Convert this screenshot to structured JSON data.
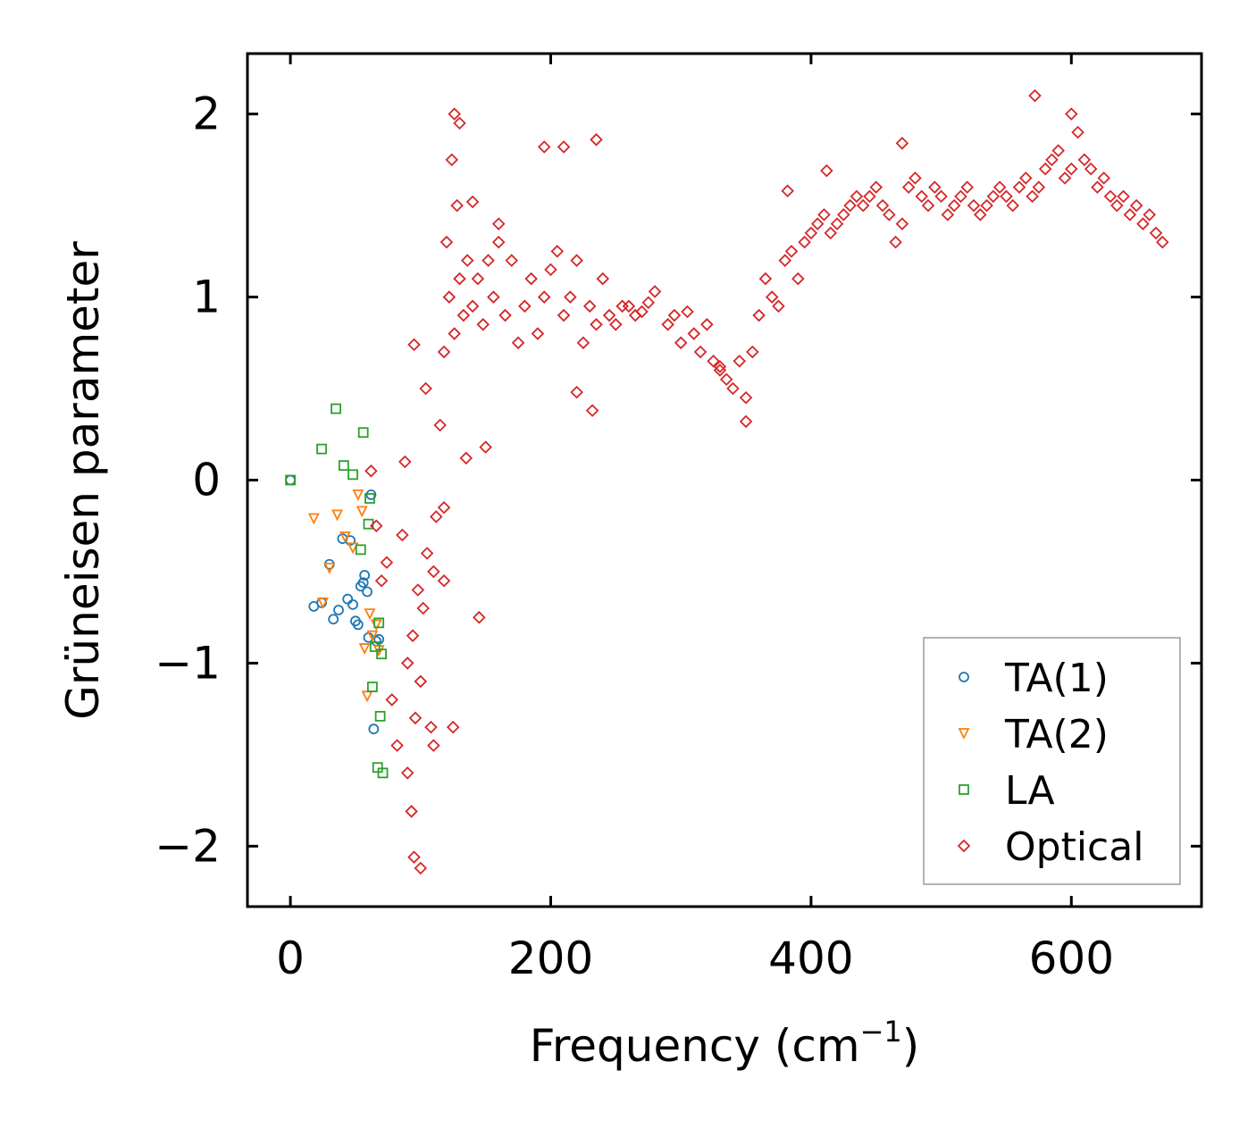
{
  "chart_data": {
    "type": "scatter",
    "title": "",
    "xlabel": "Frequency (cm",
    "xlabel_sup": "−1",
    "xlabel_close": ")",
    "ylabel": "Grüneisen parameter",
    "xlim": [
      -33,
      700
    ],
    "ylim": [
      -2.33,
      2.33
    ],
    "xticks": [
      0,
      200,
      400,
      600
    ],
    "yticks": [
      -2,
      -1,
      0,
      1,
      2
    ],
    "xtick_labels": [
      "0",
      "200",
      "400",
      "600"
    ],
    "ytick_labels": [
      "−2",
      "−1",
      "0",
      "1",
      "2"
    ],
    "legend_position": "bottom-right",
    "series": [
      {
        "name": "TA(1)",
        "marker": "circle",
        "color": "#1f77b4",
        "x": [
          0,
          18,
          24,
          30,
          33,
          37,
          40,
          44,
          46,
          48,
          50,
          52,
          54,
          56,
          57,
          59,
          60,
          62,
          64,
          66,
          68
        ],
        "y": [
          0.0,
          -0.69,
          -0.67,
          -0.46,
          -0.76,
          -0.71,
          -0.32,
          -0.65,
          -0.33,
          -0.68,
          -0.77,
          -0.79,
          -0.58,
          -0.56,
          -0.52,
          -0.61,
          -0.86,
          -0.08,
          -1.36,
          -0.88,
          -0.87
        ]
      },
      {
        "name": "TA(2)",
        "marker": "triangle",
        "color": "#ff7f0e",
        "x": [
          18,
          25,
          30,
          36,
          42,
          48,
          52,
          55,
          57,
          59,
          61,
          63,
          66,
          68
        ],
        "y": [
          -0.21,
          -0.67,
          -0.48,
          -0.19,
          -0.31,
          -0.37,
          -0.08,
          -0.17,
          -0.92,
          -1.18,
          -0.73,
          -0.85,
          -0.79,
          -0.93
        ]
      },
      {
        "name": "LA",
        "marker": "square",
        "color": "#2ca02c",
        "x": [
          0,
          24,
          35,
          41,
          48,
          54,
          56,
          60,
          61,
          63,
          65,
          67,
          68,
          69,
          70,
          71
        ],
        "y": [
          0.0,
          0.17,
          0.39,
          0.08,
          0.03,
          -0.38,
          0.26,
          -0.24,
          -0.1,
          -1.13,
          -0.91,
          -1.57,
          -0.78,
          -1.29,
          -0.95,
          -1.6
        ]
      },
      {
        "name": "Optical",
        "marker": "diamond",
        "color": "#d62728",
        "x": [
          62,
          66,
          70,
          74,
          78,
          82,
          86,
          90,
          94,
          96,
          98,
          100,
          102,
          105,
          108,
          110,
          112,
          115,
          118,
          120,
          122,
          124,
          126,
          128,
          130,
          133,
          136,
          140,
          144,
          148,
          152,
          156,
          160,
          165,
          170,
          175,
          180,
          185,
          190,
          195,
          200,
          205,
          210,
          215,
          220,
          225,
          230,
          235,
          240,
          245,
          250,
          255,
          260,
          265,
          270,
          275,
          280,
          290,
          295,
          300,
          305,
          310,
          315,
          320,
          325,
          330,
          335,
          340,
          345,
          350,
          355,
          360,
          365,
          370,
          375,
          380,
          385,
          390,
          395,
          400,
          405,
          410,
          415,
          420,
          425,
          430,
          435,
          440,
          445,
          450,
          455,
          460,
          465,
          470,
          475,
          480,
          485,
          490,
          495,
          500,
          505,
          510,
          515,
          520,
          525,
          530,
          535,
          540,
          545,
          550,
          555,
          560,
          565,
          570,
          575,
          580,
          585,
          590,
          595,
          600,
          605,
          610,
          615,
          620,
          625,
          630,
          635,
          640,
          645,
          650,
          655,
          660,
          665,
          670,
          93,
          95,
          100,
          90,
          126,
          130,
          235,
          572,
          140,
          160,
          88,
          104,
          118,
          145,
          195,
          210,
          382,
          412,
          470,
          600,
          118,
          125,
          150,
          232,
          350,
          95,
          110,
          135,
          220,
          330
        ],
        "y": [
          0.05,
          -0.25,
          -0.55,
          -0.45,
          -1.2,
          -1.45,
          -0.3,
          -1.0,
          -0.85,
          -1.3,
          -0.6,
          -1.1,
          -0.7,
          -0.4,
          -1.35,
          -0.5,
          -0.2,
          0.3,
          0.7,
          1.3,
          1.0,
          1.75,
          0.8,
          1.5,
          1.1,
          0.9,
          1.2,
          0.95,
          1.1,
          0.85,
          1.2,
          1.0,
          1.3,
          0.9,
          1.2,
          0.75,
          0.95,
          1.1,
          0.8,
          1.0,
          1.15,
          1.25,
          0.9,
          1.0,
          1.2,
          0.75,
          0.95,
          0.85,
          1.1,
          0.9,
          0.85,
          0.95,
          0.95,
          0.9,
          0.92,
          0.97,
          1.03,
          0.85,
          0.9,
          0.75,
          0.92,
          0.8,
          0.7,
          0.85,
          0.65,
          0.6,
          0.55,
          0.5,
          0.65,
          0.45,
          0.7,
          0.9,
          1.1,
          1.0,
          0.95,
          1.2,
          1.25,
          1.1,
          1.3,
          1.35,
          1.4,
          1.45,
          1.35,
          1.4,
          1.45,
          1.5,
          1.55,
          1.5,
          1.55,
          1.6,
          1.5,
          1.45,
          1.3,
          1.4,
          1.6,
          1.65,
          1.55,
          1.5,
          1.6,
          1.55,
          1.45,
          1.5,
          1.55,
          1.6,
          1.5,
          1.45,
          1.5,
          1.55,
          1.6,
          1.55,
          1.5,
          1.6,
          1.65,
          1.55,
          1.6,
          1.7,
          1.75,
          1.8,
          1.65,
          1.7,
          1.9,
          1.75,
          1.7,
          1.6,
          1.65,
          1.55,
          1.5,
          1.55,
          1.45,
          1.5,
          1.4,
          1.45,
          1.35,
          1.3,
          -1.81,
          -2.06,
          -2.12,
          -1.6,
          2.0,
          1.95,
          1.86,
          2.1,
          1.52,
          1.4,
          0.1,
          0.5,
          -0.15,
          -0.75,
          1.82,
          1.82,
          1.58,
          1.69,
          1.84,
          2.0,
          -0.55,
          -1.35,
          0.18,
          0.38,
          0.32,
          0.74,
          -1.45,
          0.12,
          0.48,
          0.62
        ]
      }
    ]
  }
}
